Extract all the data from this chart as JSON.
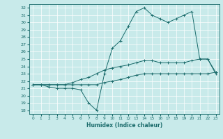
{
  "title": "",
  "xlabel": "Humidex (Indice chaleur)",
  "ylabel": "",
  "bg_color": "#c8eaea",
  "grid_color": "#ffffff",
  "line_color": "#1a6b6b",
  "x_ticks": [
    0,
    1,
    2,
    3,
    4,
    5,
    6,
    7,
    8,
    9,
    10,
    11,
    12,
    13,
    14,
    15,
    16,
    17,
    18,
    19,
    20,
    21,
    22,
    23
  ],
  "y_ticks": [
    18,
    19,
    20,
    21,
    22,
    23,
    24,
    25,
    26,
    27,
    28,
    29,
    30,
    31,
    32
  ],
  "xlim": [
    -0.5,
    23.5
  ],
  "ylim": [
    17.5,
    32.5
  ],
  "series": [
    {
      "x": [
        0,
        1,
        2,
        3,
        4,
        5,
        6,
        7,
        8,
        9,
        10,
        11,
        12,
        13,
        14,
        15,
        16,
        17,
        18,
        19,
        20,
        21,
        22,
        23
      ],
      "y": [
        21.5,
        21.5,
        21.2,
        21.0,
        21.0,
        21.0,
        20.8,
        19.0,
        18.0,
        23.0,
        26.5,
        27.5,
        29.5,
        31.5,
        32.0,
        31.0,
        30.5,
        30.0,
        30.5,
        31.0,
        31.5,
        25.0,
        25.0,
        23.0
      ]
    },
    {
      "x": [
        0,
        1,
        2,
        3,
        4,
        5,
        6,
        7,
        8,
        9,
        10,
        11,
        12,
        13,
        14,
        15,
        16,
        17,
        18,
        19,
        20,
        21,
        22,
        23
      ],
      "y": [
        21.5,
        21.5,
        21.5,
        21.5,
        21.5,
        21.8,
        22.2,
        22.5,
        23.0,
        23.5,
        23.8,
        24.0,
        24.2,
        24.5,
        24.8,
        24.8,
        24.5,
        24.5,
        24.5,
        24.5,
        24.8,
        25.0,
        25.0,
        23.2
      ]
    },
    {
      "x": [
        0,
        1,
        2,
        3,
        4,
        5,
        6,
        7,
        8,
        9,
        10,
        11,
        12,
        13,
        14,
        15,
        16,
        17,
        18,
        19,
        20,
        21,
        22,
        23
      ],
      "y": [
        21.5,
        21.5,
        21.5,
        21.5,
        21.5,
        21.5,
        21.5,
        21.5,
        21.5,
        21.8,
        22.0,
        22.2,
        22.5,
        22.8,
        23.0,
        23.0,
        23.0,
        23.0,
        23.0,
        23.0,
        23.0,
        23.0,
        23.0,
        23.2
      ]
    }
  ]
}
